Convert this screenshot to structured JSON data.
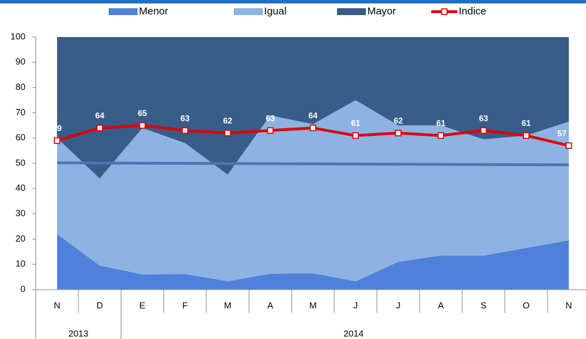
{
  "chart_data": {
    "type": "area",
    "categories": [
      "N",
      "D",
      "E",
      "F",
      "M",
      "A",
      "M",
      "J",
      "J",
      "A",
      "S",
      "O",
      "N"
    ],
    "groups": [
      {
        "label": "2013",
        "span": 2
      },
      {
        "label": "2014",
        "span": 11
      }
    ],
    "series": [
      {
        "name": "Menor",
        "type": "area",
        "color": "#4f81dc",
        "values": [
          22,
          9.5,
          6,
          6.2,
          3.3,
          6.3,
          6.5,
          3.3,
          11,
          13.5,
          13.5,
          16.5,
          19.5
        ]
      },
      {
        "name": "Igual",
        "type": "area",
        "color": "#8db3e2",
        "values": [
          38,
          34.5,
          58,
          51.8,
          42.2,
          62.7,
          59,
          71.7,
          54,
          51.5,
          46,
          44.5,
          47
        ]
      },
      {
        "name": "Mayor",
        "type": "area",
        "color": "#385d8a",
        "values": [
          40,
          56,
          36,
          42,
          54.5,
          31,
          34.5,
          25,
          35,
          35,
          40.5,
          39,
          33.5
        ]
      },
      {
        "name": "Indice",
        "type": "line",
        "color": "#e00000",
        "values": [
          59,
          64,
          65,
          63,
          62,
          63,
          64,
          61,
          62,
          61,
          63,
          61,
          57
        ]
      }
    ],
    "reference_line": {
      "values": [
        50.2,
        49.4
      ],
      "color": "#4a76b4"
    },
    "ylim": [
      0,
      100
    ],
    "yticks": [
      0,
      10,
      20,
      30,
      40,
      50,
      60,
      70,
      80,
      90,
      100
    ]
  }
}
